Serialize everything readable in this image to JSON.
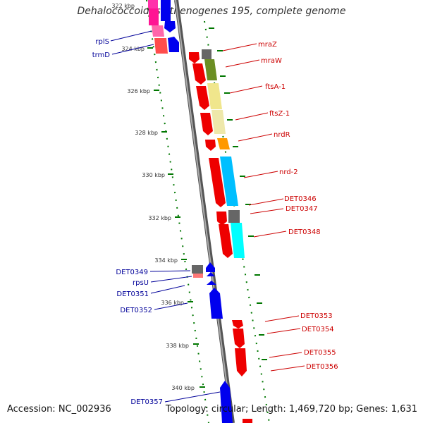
{
  "title": "Dehalococcoides ethenogenes 195, complete genome",
  "footer": {
    "accession": "Accession: NC_002936",
    "topology": "Topology: circular; Length: 1,469,720 bp; Genes: 1,631"
  },
  "colors": {
    "forward_gene": "#ee0000",
    "reverse_gene": "#0000ee",
    "backbone": "#888888",
    "tick": "#007700",
    "label_right": "#cc0000",
    "label_left": "#000099"
  },
  "kbp_ticks": [
    "322 kbp",
    "324 kbp",
    "326 kbp",
    "328 kbp",
    "330 kbp",
    "332 kbp",
    "334 kbp",
    "336 kbp",
    "338 kbp",
    "340 kbp"
  ],
  "right_labels": [
    "mraZ",
    "mraW",
    "ftsA-1",
    "ftsZ-1",
    "nrdR",
    "nrd-2",
    "DET0346",
    "DET0347",
    "DET0348",
    "DET0353",
    "DET0354",
    "DET0355",
    "DET0356"
  ],
  "left_labels": [
    "rplS",
    "trmD",
    "DET0349",
    "rpsU",
    "DET0351",
    "DET0352",
    "DET0357"
  ]
}
